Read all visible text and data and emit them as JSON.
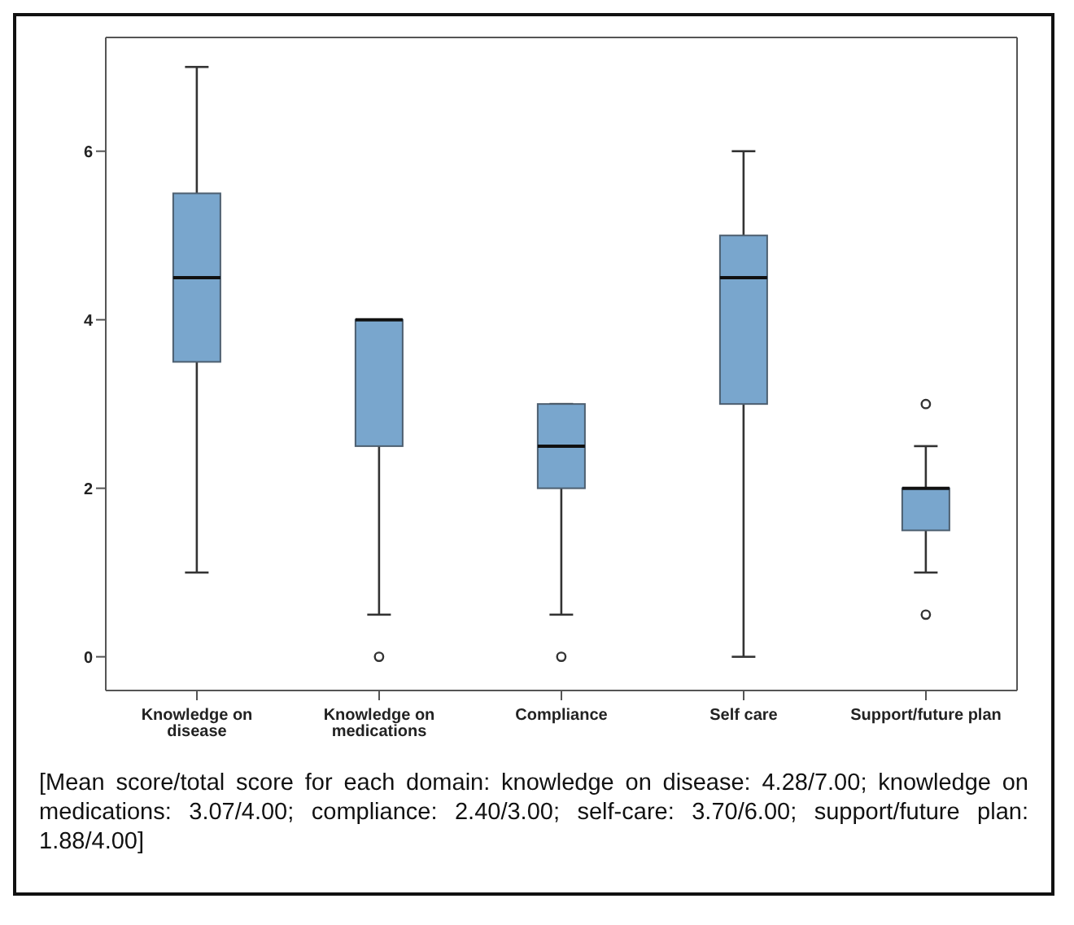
{
  "chart_data": {
    "type": "box",
    "categories": [
      "Knowledge on disease",
      "Knowledge on medications",
      "Compliance",
      "Self care",
      "Support/future plan"
    ],
    "boxes": [
      {
        "low": 1,
        "q1": 3.5,
        "median": 4.5,
        "q3": 5.5,
        "high": 7
      },
      {
        "low": 0.5,
        "q1": 2.5,
        "median": 4,
        "q3": 4,
        "high": 4,
        "outliers": [
          0
        ]
      },
      {
        "low": 0.5,
        "q1": 2,
        "median": 2.5,
        "q3": 3,
        "high": 3,
        "outliers": [
          0
        ]
      },
      {
        "low": 0,
        "q1": 3,
        "median": 4.5,
        "q3": 5,
        "high": 6
      },
      {
        "low": 1,
        "q1": 1.5,
        "median": 2,
        "q3": 2,
        "high": 2.5,
        "outliers": [
          0.5,
          3
        ]
      }
    ],
    "color": "#79a6cd",
    "ylim": [
      -0.4,
      7.35
    ],
    "yticks": [
      0,
      2,
      4,
      6
    ],
    "grid": false,
    "annotations": [
      "[Mean score/total score for each domain: knowledge on disease: 4.28/7.00; knowledge on medications: 3.07/4.00; compliance: 2.40/3.00; self-care: 3.70/6.00; support/future plan: 1.88/4.00]"
    ]
  }
}
